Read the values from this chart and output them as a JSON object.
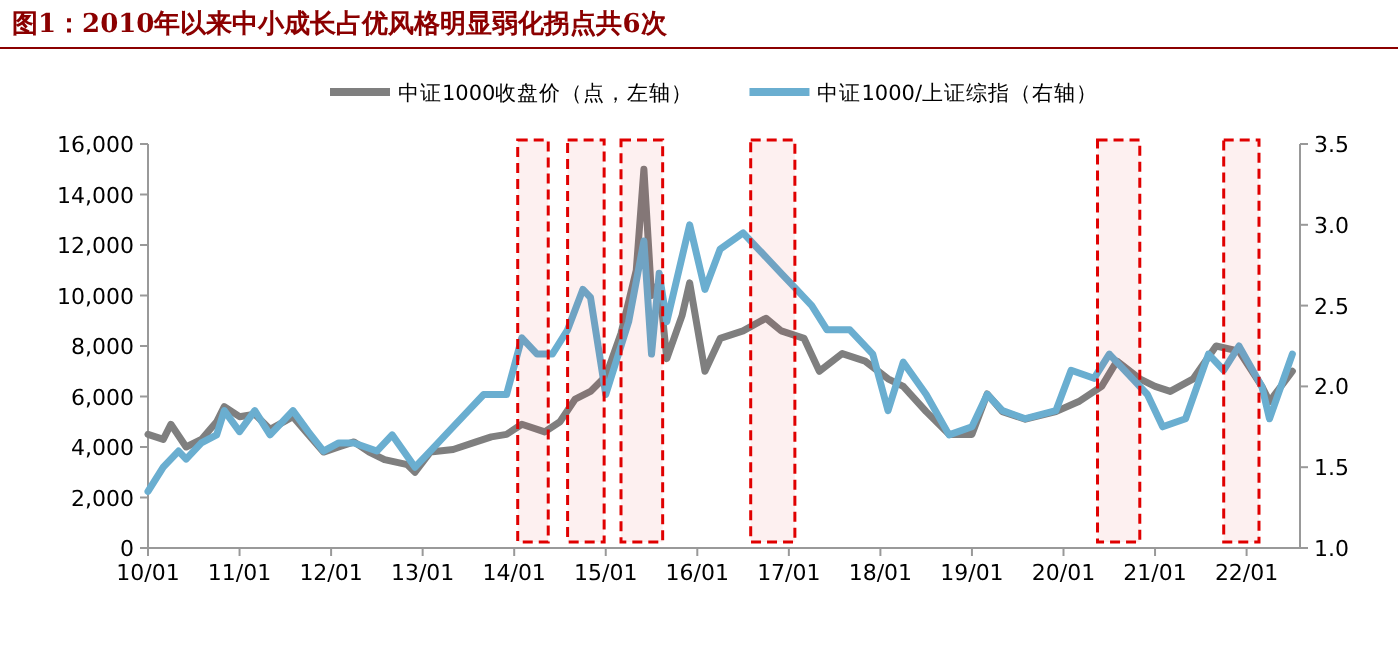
{
  "chart_data": {
    "type": "line",
    "title": "图1：2010年以来中小成长占优风格明显弱化拐点共6次",
    "legend": "top right",
    "grid": false,
    "xlim": [
      "2010-01",
      "2022-08"
    ],
    "xticks": [
      {
        "value": "2010-01",
        "label": "10/01"
      },
      {
        "value": "2011-01",
        "label": "11/01"
      },
      {
        "value": "2012-01",
        "label": "12/01"
      },
      {
        "value": "2013-01",
        "label": "13/01"
      },
      {
        "value": "2014-01",
        "label": "14/01"
      },
      {
        "value": "2015-01",
        "label": "15/01"
      },
      {
        "value": "2016-01",
        "label": "16/01"
      },
      {
        "value": "2017-01",
        "label": "17/01"
      },
      {
        "value": "2018-01",
        "label": "18/01"
      },
      {
        "value": "2019-01",
        "label": "19/01"
      },
      {
        "value": "2020-01",
        "label": "20/01"
      },
      {
        "value": "2021-01",
        "label": "21/01"
      },
      {
        "value": "2022-01",
        "label": "22/01"
      }
    ],
    "ylim": [
      0,
      16000
    ],
    "yticks": [
      {
        "value": 0,
        "label": "0"
      },
      {
        "value": 2000,
        "label": "2,000"
      },
      {
        "value": 4000,
        "label": "4,000"
      },
      {
        "value": 6000,
        "label": "6,000"
      },
      {
        "value": 8000,
        "label": "8,000"
      },
      {
        "value": 10000,
        "label": "10,000"
      },
      {
        "value": 12000,
        "label": "12,000"
      },
      {
        "value": 14000,
        "label": "14,000"
      },
      {
        "value": 16000,
        "label": "16,000"
      }
    ],
    "y2lim": [
      1.0,
      3.5
    ],
    "y2ticks": [
      {
        "value": 1.0,
        "label": "1.0"
      },
      1.5,
      {
        "value": 2.0,
        "label": "2.0"
      },
      2.5,
      {
        "value": 3.0,
        "label": "3.0"
      },
      3.5
    ],
    "bands": [
      {
        "axis": "x",
        "from": "2014-01-15",
        "to": "2014-05-15",
        "color": "#e00000"
      },
      {
        "axis": "x",
        "from": "2014-08-01",
        "to": "2014-12-25",
        "color": "#e00000"
      },
      {
        "axis": "x",
        "from": "2015-03-01",
        "to": "2015-08-15",
        "color": "#e00000"
      },
      {
        "axis": "x",
        "from": "2016-08-01",
        "to": "2017-01-25",
        "color": "#e00000"
      },
      {
        "axis": "x",
        "from": "2020-05-15",
        "to": "2020-11-01",
        "color": "#e00000"
      },
      {
        "axis": "x",
        "from": "2021-10-01",
        "to": "2022-02-20",
        "color": "#e00000"
      }
    ],
    "series": [
      {
        "name": "中证1000收盘价（点，左轴）",
        "color": "#7f7f7f",
        "x": [
          "2010-01",
          "2010-03",
          "2010-04",
          "2010-06",
          "2010-08",
          "2010-10",
          "2010-11",
          "2011-01",
          "2011-03",
          "2011-05",
          "2011-08",
          "2011-10",
          "2011-12",
          "2012-02",
          "2012-04",
          "2012-06",
          "2012-08",
          "2012-11",
          "2012-12",
          "2013-02",
          "2013-05",
          "2013-08",
          "2013-10",
          "2013-12",
          "2014-02",
          "2014-05",
          "2014-07",
          "2014-09",
          "2014-11",
          "2015-01",
          "2015-03",
          "2015-05",
          "2015-06",
          "2015-07",
          "2015-08",
          "2015-09",
          "2015-11",
          "2015-12",
          "2016-02",
          "2016-04",
          "2016-07",
          "2016-10",
          "2016-12",
          "2017-03",
          "2017-05",
          "2017-08",
          "2017-11",
          "2018-02",
          "2018-04",
          "2018-07",
          "2018-10",
          "2019-01",
          "2019-03",
          "2019-05",
          "2019-08",
          "2019-12",
          "2020-03",
          "2020-06",
          "2020-08",
          "2020-11",
          "2021-01",
          "2021-03",
          "2021-06",
          "2021-09",
          "2021-12",
          "2022-03",
          "2022-04",
          "2022-07"
        ],
        "values": [
          4500,
          4300,
          4900,
          4000,
          4300,
          5000,
          5600,
          5200,
          5300,
          4700,
          5200,
          4500,
          3800,
          4000,
          4200,
          3800,
          3500,
          3300,
          3000,
          3800,
          3900,
          4200,
          4400,
          4500,
          4900,
          4600,
          5000,
          5900,
          6200,
          6800,
          8500,
          11000,
          15000,
          10000,
          10500,
          7500,
          9200,
          10500,
          7000,
          8300,
          8600,
          9100,
          8600,
          8300,
          7000,
          7700,
          7400,
          6700,
          6400,
          5400,
          4500,
          4500,
          6100,
          5400,
          5100,
          5400,
          5800,
          6400,
          7400,
          6700,
          6400,
          6200,
          6700,
          8000,
          7800,
          6400,
          5800,
          7000
        ]
      },
      {
        "name": "中证1000/上证综指（右轴）",
        "color": "#6aaed0",
        "axis": "y2",
        "x": [
          "2010-01",
          "2010-03",
          "2010-05",
          "2010-06",
          "2010-08",
          "2010-10",
          "2010-11",
          "2011-01",
          "2011-03",
          "2011-05",
          "2011-08",
          "2011-10",
          "2011-12",
          "2012-02",
          "2012-04",
          "2012-07",
          "2012-09",
          "2012-12",
          "2013-02",
          "2013-04",
          "2013-07",
          "2013-09",
          "2013-12",
          "2014-02",
          "2014-04",
          "2014-06",
          "2014-08",
          "2014-10",
          "2014-11",
          "2015-01",
          "2015-02",
          "2015-04",
          "2015-06",
          "2015-07",
          "2015-08",
          "2015-09",
          "2015-11",
          "2015-12",
          "2016-02",
          "2016-04",
          "2016-07",
          "2016-09",
          "2016-12",
          "2017-02",
          "2017-04",
          "2017-06",
          "2017-09",
          "2017-12",
          "2018-02",
          "2018-04",
          "2018-07",
          "2018-10",
          "2019-01",
          "2019-03",
          "2019-05",
          "2019-08",
          "2019-12",
          "2020-02",
          "2020-05",
          "2020-07",
          "2020-10",
          "2020-12",
          "2021-02",
          "2021-05",
          "2021-08",
          "2021-10",
          "2021-12",
          "2022-03",
          "2022-04",
          "2022-07"
        ],
        "values": [
          1.35,
          1.5,
          1.6,
          1.55,
          1.65,
          1.7,
          1.85,
          1.72,
          1.85,
          1.7,
          1.85,
          1.72,
          1.6,
          1.65,
          1.65,
          1.6,
          1.7,
          1.5,
          1.6,
          1.7,
          1.85,
          1.95,
          1.95,
          2.3,
          2.2,
          2.2,
          2.35,
          2.6,
          2.55,
          1.95,
          2.1,
          2.4,
          2.9,
          2.2,
          2.7,
          2.4,
          2.8,
          3.0,
          2.6,
          2.85,
          2.95,
          2.85,
          2.7,
          2.6,
          2.5,
          2.35,
          2.35,
          2.2,
          1.85,
          2.15,
          1.95,
          1.7,
          1.75,
          1.95,
          1.85,
          1.8,
          1.85,
          2.1,
          2.05,
          2.2,
          2.05,
          1.95,
          1.75,
          1.8,
          2.2,
          2.1,
          2.25,
          2.0,
          1.8,
          2.2
        ]
      }
    ]
  }
}
